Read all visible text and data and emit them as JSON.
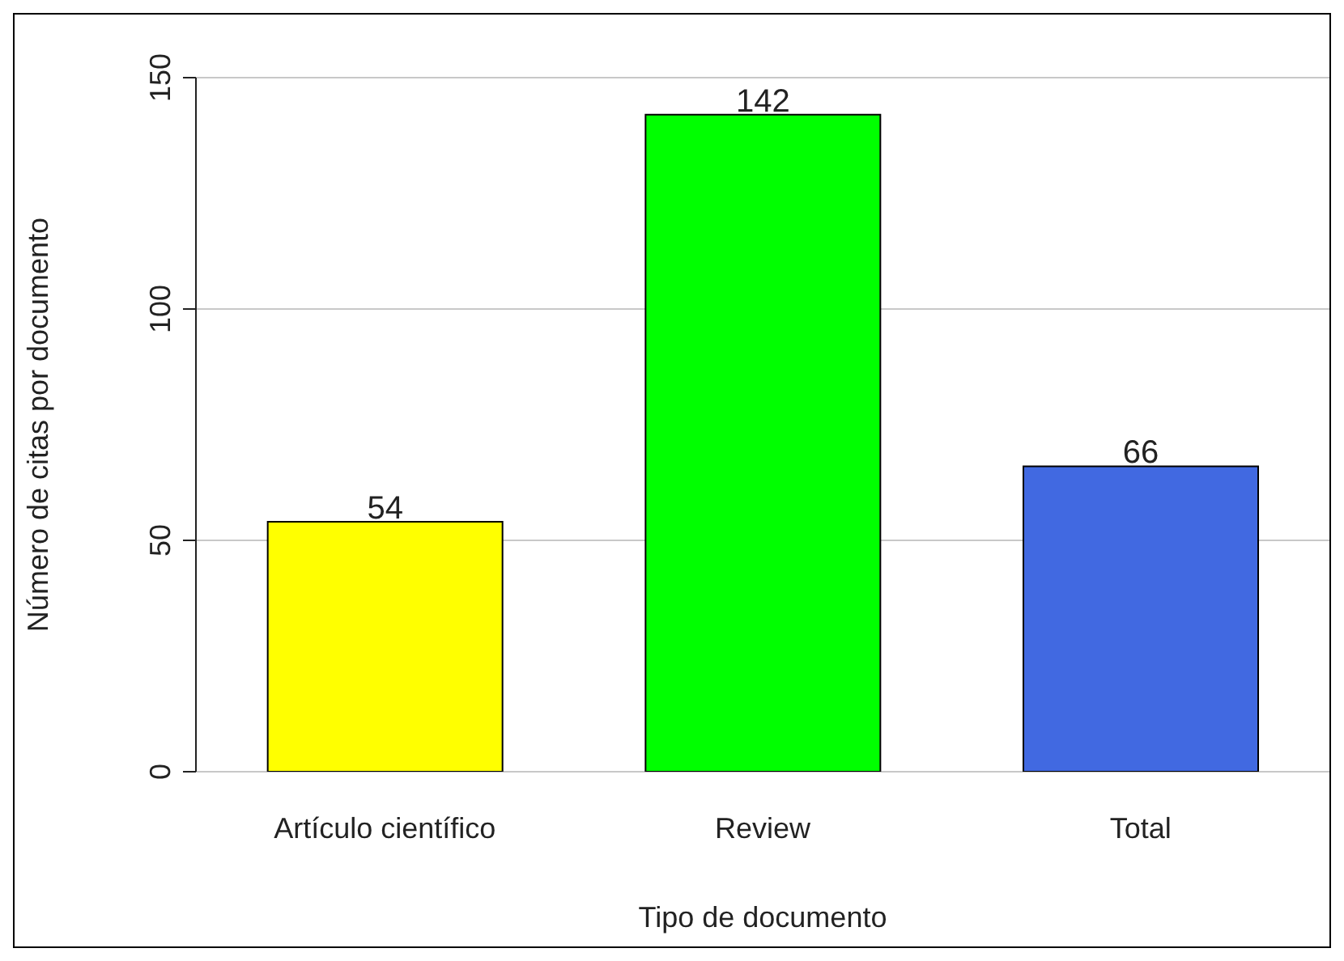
{
  "chart_data": {
    "type": "bar",
    "xlabel": "Tipo de documento",
    "ylabel": "Número de citas por documento",
    "categories": [
      "Artículo científico",
      "Review",
      "Total"
    ],
    "values": [
      54,
      142,
      66
    ],
    "colors": [
      "#ffff00",
      "#00ff00",
      "#4169e1"
    ],
    "ylim": [
      0,
      150
    ],
    "yticks": [
      0,
      50,
      100,
      150
    ],
    "grid": "y",
    "data_labels": true,
    "legend": false
  }
}
